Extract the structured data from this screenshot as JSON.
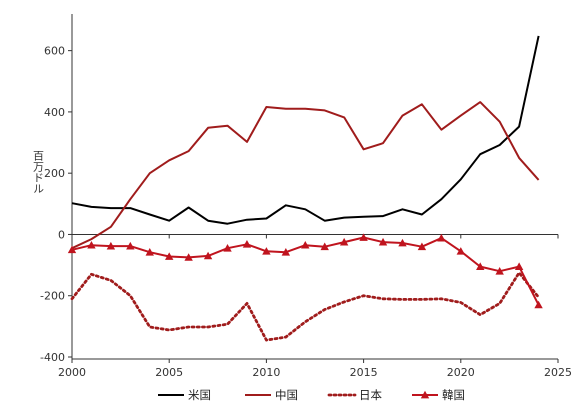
{
  "chart_data": {
    "type": "line",
    "title": "",
    "xlabel": "",
    "ylabel": "百万ドル",
    "xlim": [
      2000,
      2025
    ],
    "ylim": [
      -400,
      700
    ],
    "x_ticks": [
      2000,
      2005,
      2010,
      2015,
      2020,
      2025
    ],
    "y_ticks": [
      600,
      400,
      200,
      0,
      -200,
      -400
    ],
    "grid": false,
    "legend_position": "bottom",
    "series": [
      {
        "name": "米国",
        "color": "#000000",
        "style": "solid",
        "marker": "none",
        "x": [
          2000,
          2001,
          2002,
          2003,
          2004,
          2005,
          2006,
          2007,
          2008,
          2009,
          2010,
          2011,
          2012,
          2013,
          2014,
          2015,
          2016,
          2017,
          2018,
          2019,
          2020,
          2021,
          2022,
          2023,
          2024
        ],
        "values": [
          102,
          90,
          86,
          86,
          65,
          45,
          88,
          45,
          35,
          48,
          52,
          95,
          82,
          45,
          55,
          58,
          60,
          82,
          65,
          115,
          180,
          262,
          292,
          352,
          648
        ]
      },
      {
        "name": "中国",
        "color": "#a01c1c",
        "style": "solid",
        "marker": "none",
        "x": [
          2000,
          2001,
          2002,
          2003,
          2004,
          2005,
          2006,
          2007,
          2008,
          2009,
          2010,
          2011,
          2012,
          2013,
          2014,
          2015,
          2016,
          2017,
          2018,
          2019,
          2020,
          2021,
          2022,
          2023,
          2024
        ],
        "values": [
          -45,
          -15,
          25,
          115,
          200,
          242,
          272,
          348,
          355,
          302,
          416,
          410,
          410,
          405,
          382,
          278,
          298,
          388,
          425,
          342,
          388,
          432,
          368,
          250,
          178
        ]
      },
      {
        "name": "日本",
        "color": "#a01c1c",
        "style": "dotted",
        "marker": "none",
        "x": [
          2000,
          2001,
          2002,
          2003,
          2004,
          2005,
          2006,
          2007,
          2008,
          2009,
          2010,
          2011,
          2012,
          2013,
          2014,
          2015,
          2016,
          2017,
          2018,
          2019,
          2020,
          2021,
          2022,
          2023,
          2024
        ],
        "values": [
          -210,
          -130,
          -150,
          -200,
          -302,
          -312,
          -302,
          -302,
          -293,
          -225,
          -345,
          -335,
          -285,
          -245,
          -220,
          -200,
          -210,
          -212,
          -212,
          -210,
          -222,
          -262,
          -225,
          -125,
          -205
        ]
      },
      {
        "name": "韓国",
        "color": "#c0141e",
        "style": "solid",
        "marker": "triangle",
        "x": [
          2000,
          2001,
          2002,
          2003,
          2004,
          2005,
          2006,
          2007,
          2008,
          2009,
          2010,
          2011,
          2012,
          2013,
          2014,
          2015,
          2016,
          2017,
          2018,
          2019,
          2020,
          2021,
          2022,
          2023,
          2024
        ],
        "values": [
          -50,
          -35,
          -38,
          -38,
          -58,
          -72,
          -75,
          -70,
          -45,
          -32,
          -55,
          -58,
          -35,
          -40,
          -25,
          -10,
          -25,
          -28,
          -40,
          -12,
          -55,
          -105,
          -120,
          -105,
          -230
        ]
      }
    ]
  }
}
